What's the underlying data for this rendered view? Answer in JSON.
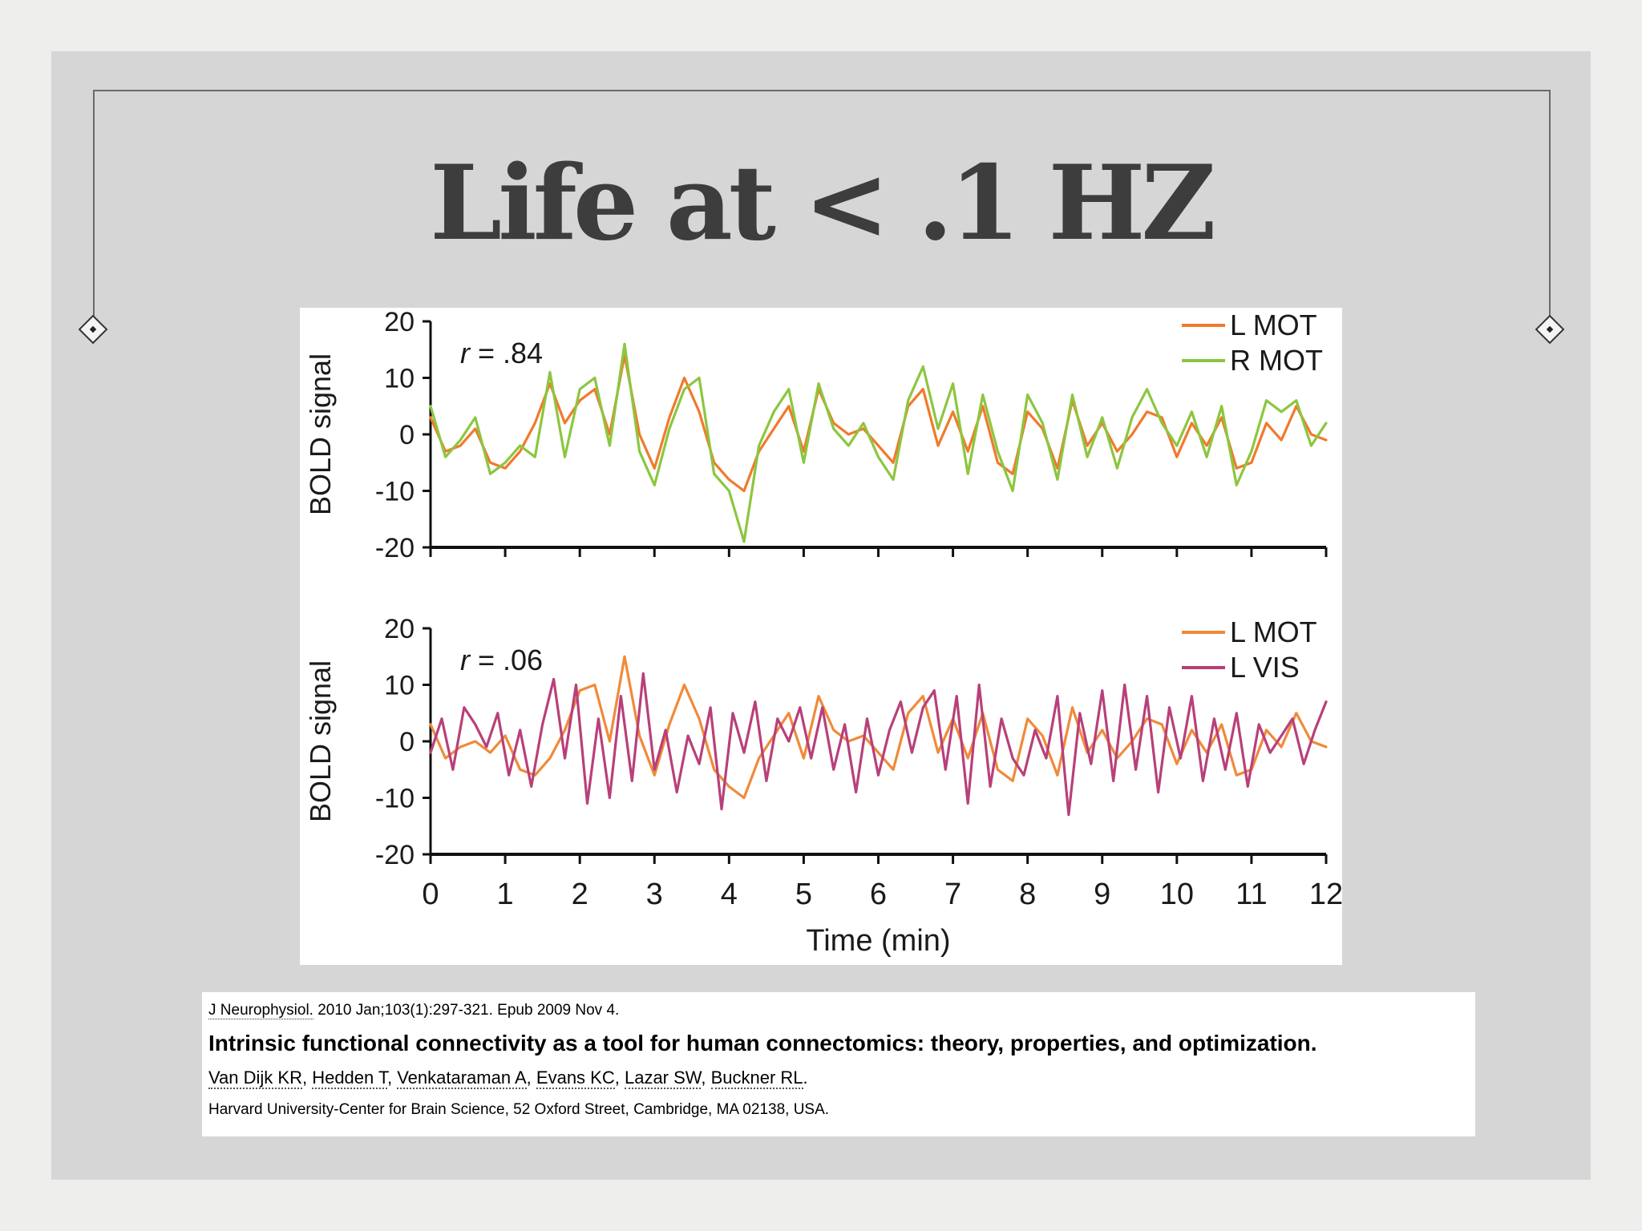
{
  "slide": {
    "title": "Life at < .1 HZ",
    "colors": {
      "background": "#d6d6d7",
      "frame": "#6a6a6a",
      "title": "#3d3d3d"
    }
  },
  "chart_data": [
    {
      "type": "line",
      "panel": "top",
      "annotation_r": "r",
      "annotation_value": " = .84",
      "ylabel": "BOLD signal",
      "xlabel": "",
      "xlim": [
        0,
        12
      ],
      "ylim": [
        -20,
        20
      ],
      "yticks": [
        20,
        10,
        0,
        -10,
        -20
      ],
      "legend_position": "top-right",
      "series": [
        {
          "name": "L MOT",
          "color": "#f07a2c",
          "x": [
            0,
            0.2,
            0.4,
            0.6,
            0.8,
            1.0,
            1.2,
            1.4,
            1.6,
            1.8,
            2.0,
            2.2,
            2.4,
            2.6,
            2.8,
            3.0,
            3.2,
            3.4,
            3.6,
            3.8,
            4.0,
            4.2,
            4.4,
            4.6,
            4.8,
            5.0,
            5.2,
            5.4,
            5.6,
            5.8,
            6.0,
            6.2,
            6.4,
            6.6,
            6.8,
            7.0,
            7.2,
            7.4,
            7.6,
            7.8,
            8.0,
            8.2,
            8.4,
            8.6,
            8.8,
            9.0,
            9.2,
            9.4,
            9.6,
            9.8,
            10.0,
            10.2,
            10.4,
            10.6,
            10.8,
            11.0,
            11.2,
            11.4,
            11.6,
            11.8,
            12.0
          ],
          "values": [
            3,
            -3,
            -2,
            1,
            -5,
            -6,
            -3,
            2,
            9,
            2,
            6,
            8,
            0,
            14,
            0,
            -6,
            3,
            10,
            4,
            -5,
            -8,
            -10,
            -3,
            1,
            5,
            -3,
            8,
            2,
            0,
            1,
            -2,
            -5,
            5,
            8,
            -2,
            4,
            -3,
            5,
            -5,
            -7,
            4,
            1,
            -6,
            6,
            -2,
            2,
            -3,
            0,
            4,
            3,
            -4,
            2,
            -2,
            3,
            -6,
            -5,
            2,
            -1,
            5,
            0,
            -1
          ]
        },
        {
          "name": "R MOT",
          "color": "#8cc63f",
          "x": [
            0,
            0.2,
            0.4,
            0.6,
            0.8,
            1.0,
            1.2,
            1.4,
            1.6,
            1.8,
            2.0,
            2.2,
            2.4,
            2.6,
            2.8,
            3.0,
            3.2,
            3.4,
            3.6,
            3.8,
            4.0,
            4.2,
            4.4,
            4.6,
            4.8,
            5.0,
            5.2,
            5.4,
            5.6,
            5.8,
            6.0,
            6.2,
            6.4,
            6.6,
            6.8,
            7.0,
            7.2,
            7.4,
            7.6,
            7.8,
            8.0,
            8.2,
            8.4,
            8.6,
            8.8,
            9.0,
            9.2,
            9.4,
            9.6,
            9.8,
            10.0,
            10.2,
            10.4,
            10.6,
            10.8,
            11.0,
            11.2,
            11.4,
            11.6,
            11.8,
            12.0
          ],
          "values": [
            5,
            -4,
            -1,
            3,
            -7,
            -5,
            -2,
            -4,
            11,
            -4,
            8,
            10,
            -2,
            16,
            -3,
            -9,
            1,
            8,
            10,
            -7,
            -10,
            -19,
            -2,
            4,
            8,
            -5,
            9,
            1,
            -2,
            2,
            -4,
            -8,
            6,
            12,
            1,
            9,
            -7,
            7,
            -3,
            -10,
            7,
            2,
            -8,
            7,
            -4,
            3,
            -6,
            3,
            8,
            2,
            -2,
            4,
            -4,
            5,
            -9,
            -3,
            6,
            4,
            6,
            -2,
            2
          ]
        }
      ]
    },
    {
      "type": "line",
      "panel": "bottom",
      "annotation_r": "r",
      "annotation_value": " = .06",
      "ylabel": "BOLD signal",
      "xlabel": "Time (min)",
      "xlim": [
        0,
        12
      ],
      "ylim": [
        -20,
        20
      ],
      "yticks": [
        20,
        10,
        0,
        -10,
        -20
      ],
      "xticks": [
        0,
        1,
        2,
        3,
        4,
        5,
        6,
        7,
        8,
        9,
        10,
        11,
        12
      ],
      "legend_position": "top-right",
      "series": [
        {
          "name": "L MOT",
          "color": "#f08a3a",
          "x": [
            0,
            0.2,
            0.4,
            0.6,
            0.8,
            1.0,
            1.2,
            1.4,
            1.6,
            1.8,
            2.0,
            2.2,
            2.4,
            2.6,
            2.8,
            3.0,
            3.2,
            3.4,
            3.6,
            3.8,
            4.0,
            4.2,
            4.4,
            4.6,
            4.8,
            5.0,
            5.2,
            5.4,
            5.6,
            5.8,
            6.0,
            6.2,
            6.4,
            6.6,
            6.8,
            7.0,
            7.2,
            7.4,
            7.6,
            7.8,
            8.0,
            8.2,
            8.4,
            8.6,
            8.8,
            9.0,
            9.2,
            9.4,
            9.6,
            9.8,
            10.0,
            10.2,
            10.4,
            10.6,
            10.8,
            11.0,
            11.2,
            11.4,
            11.6,
            11.8,
            12.0
          ],
          "values": [
            3,
            -3,
            -1,
            0,
            -2,
            1,
            -5,
            -6,
            -3,
            2,
            9,
            10,
            0,
            15,
            1,
            -6,
            3,
            10,
            4,
            -5,
            -8,
            -10,
            -3,
            1,
            5,
            -3,
            8,
            2,
            0,
            1,
            -2,
            -5,
            5,
            8,
            -2,
            4,
            -3,
            5,
            -5,
            -7,
            4,
            1,
            -6,
            6,
            -2,
            2,
            -3,
            0,
            4,
            3,
            -4,
            2,
            -2,
            3,
            -6,
            -5,
            2,
            -1,
            5,
            0,
            -1
          ]
        },
        {
          "name": "L VIS",
          "color": "#b8407a",
          "x": [
            0,
            0.15,
            0.3,
            0.45,
            0.6,
            0.75,
            0.9,
            1.05,
            1.2,
            1.35,
            1.5,
            1.65,
            1.8,
            1.95,
            2.1,
            2.25,
            2.4,
            2.55,
            2.7,
            2.85,
            3.0,
            3.15,
            3.3,
            3.45,
            3.6,
            3.75,
            3.9,
            4.05,
            4.2,
            4.35,
            4.5,
            4.65,
            4.8,
            4.95,
            5.1,
            5.25,
            5.4,
            5.55,
            5.7,
            5.85,
            6.0,
            6.15,
            6.3,
            6.45,
            6.6,
            6.75,
            6.9,
            7.05,
            7.2,
            7.35,
            7.5,
            7.65,
            7.8,
            7.95,
            8.1,
            8.25,
            8.4,
            8.55,
            8.7,
            8.85,
            9.0,
            9.15,
            9.3,
            9.45,
            9.6,
            9.75,
            9.9,
            10.05,
            10.2,
            10.35,
            10.5,
            10.65,
            10.8,
            10.95,
            11.1,
            11.25,
            11.4,
            11.55,
            11.7,
            11.85,
            12.0
          ],
          "values": [
            -2,
            4,
            -5,
            6,
            3,
            -1,
            5,
            -6,
            2,
            -8,
            3,
            11,
            -3,
            10,
            -11,
            4,
            -10,
            8,
            -7,
            12,
            -5,
            2,
            -9,
            1,
            -4,
            6,
            -12,
            5,
            -2,
            7,
            -7,
            4,
            0,
            6,
            -3,
            6,
            -5,
            3,
            -9,
            4,
            -6,
            2,
            7,
            -2,
            6,
            9,
            -5,
            8,
            -11,
            10,
            -8,
            4,
            -3,
            -6,
            2,
            -3,
            8,
            -13,
            5,
            -4,
            9,
            -7,
            10,
            -5,
            8,
            -9,
            6,
            -3,
            8,
            -7,
            4,
            -5,
            5,
            -8,
            3,
            -2,
            1,
            4,
            -4,
            2,
            7
          ]
        }
      ]
    }
  ],
  "citation": {
    "journal": "J Neurophysiol.",
    "journal_rest": " 2010 Jan;103(1):297-321. Epub 2009 Nov 4.",
    "title": "Intrinsic functional connectivity as a tool for human connectomics: theory, properties, and optimization.",
    "authors": [
      "Van Dijk KR",
      "Hedden T",
      "Venkataraman A",
      "Evans KC",
      "Lazar SW",
      "Buckner RL"
    ],
    "author_separator": ", ",
    "authors_end": ".",
    "affiliation": "Harvard University-Center for Brain Science, 52 Oxford Street, Cambridge, MA 02138, USA."
  }
}
